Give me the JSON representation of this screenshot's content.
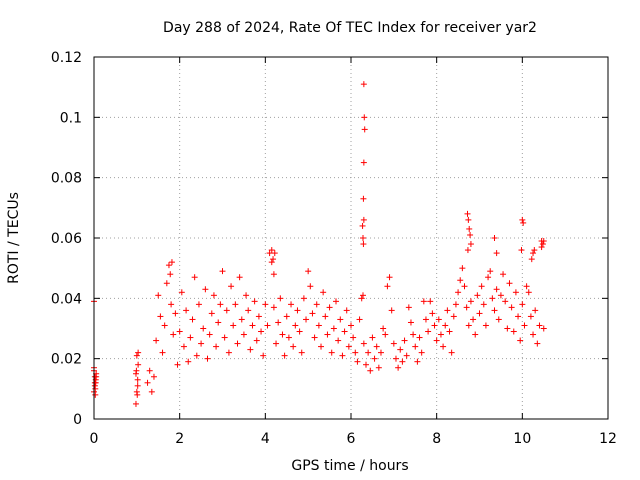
{
  "chart_data": {
    "type": "scatter",
    "title": "Day 288 of 2024, Rate Of TEC Index for receiver yar2",
    "xlabel": "GPS time / hours",
    "ylabel": "ROTI / TECUs",
    "xlim": [
      0,
      12
    ],
    "ylim": [
      0,
      0.12
    ],
    "xticks": [
      0,
      2,
      4,
      6,
      8,
      10,
      12
    ],
    "xtick_labels": [
      "0",
      "2",
      "4",
      "6",
      "8",
      "10",
      "12"
    ],
    "yticks": [
      0,
      0.02,
      0.04,
      0.06,
      0.08,
      0.1,
      0.12
    ],
    "ytick_labels": [
      "0",
      "0.02",
      "0.04",
      "0.06",
      "0.08",
      "0.1",
      "0.12"
    ],
    "grid": true,
    "marker": "+",
    "color": "#ff0000",
    "series": [
      {
        "name": "ROTI",
        "x": [
          0.0,
          0.02,
          0.03,
          0.05,
          0.0,
          0.02,
          0.04,
          0.05,
          0.0,
          0.03,
          0.0,
          0.04,
          0.98,
          1.0,
          1.02,
          1.03,
          1.0,
          0.98,
          1.02,
          1.01,
          1.03,
          0.99,
          1.25,
          1.3,
          1.35,
          1.4,
          1.45,
          1.5,
          1.55,
          1.6,
          1.65,
          1.7,
          1.75,
          1.8,
          1.85,
          1.9,
          1.95,
          2.0,
          2.05,
          2.1,
          2.15,
          2.2,
          2.25,
          2.3,
          2.35,
          2.4,
          2.45,
          2.5,
          2.55,
          2.6,
          2.65,
          2.7,
          2.75,
          2.8,
          2.85,
          2.9,
          2.95,
          3.0,
          3.05,
          3.1,
          3.15,
          3.2,
          3.25,
          3.3,
          3.35,
          3.4,
          3.45,
          3.5,
          3.55,
          3.6,
          3.65,
          3.7,
          3.75,
          3.8,
          3.85,
          3.9,
          3.95,
          4.0,
          4.05,
          4.1,
          4.15,
          4.2,
          4.25,
          4.3,
          4.35,
          4.4,
          4.45,
          4.5,
          4.55,
          4.6,
          4.65,
          4.7,
          4.75,
          4.8,
          4.85,
          4.9,
          4.95,
          5.0,
          5.05,
          5.1,
          5.15,
          5.2,
          5.25,
          5.3,
          5.35,
          5.4,
          5.45,
          5.5,
          5.55,
          5.6,
          5.65,
          5.7,
          5.75,
          5.8,
          5.85,
          5.9,
          5.95,
          6.0,
          6.05,
          6.1,
          6.15,
          6.2,
          6.25,
          6.3,
          6.35,
          6.4,
          6.45,
          6.5,
          6.55,
          6.6,
          6.65,
          6.7,
          6.75,
          6.8,
          6.85,
          6.9,
          6.95,
          7.0,
          7.05,
          7.1,
          7.15,
          7.2,
          7.25,
          7.3,
          7.35,
          7.4,
          7.45,
          7.5,
          7.55,
          7.6,
          7.65,
          7.7,
          7.75,
          7.8,
          7.85,
          7.9,
          7.95,
          8.0,
          8.05,
          8.1,
          8.15,
          8.2,
          8.25,
          8.3,
          8.35,
          8.4,
          8.45,
          8.5,
          8.55,
          8.6,
          8.65,
          8.7,
          8.75,
          8.8,
          8.85,
          8.9,
          8.95,
          9.0,
          9.05,
          9.1,
          9.15,
          9.2,
          9.25,
          9.3,
          9.35,
          9.4,
          9.45,
          9.5,
          9.55,
          9.6,
          9.65,
          9.7,
          9.75,
          9.8,
          9.85,
          9.9,
          9.95,
          10.0,
          10.05,
          10.1,
          10.15,
          10.2,
          10.25,
          10.3,
          10.35,
          10.4,
          10.45,
          10.5,
          6.3,
          6.31,
          6.32,
          6.3,
          6.29,
          6.3,
          6.28,
          6.29,
          6.28,
          6.27,
          8.72,
          8.74,
          8.76,
          8.78,
          8.8,
          8.73,
          10.0,
          10.02,
          9.98,
          10.45,
          10.48,
          10.5,
          4.15,
          4.18,
          4.2,
          4.22,
          1.82,
          1.78,
          9.35,
          9.4,
          10.25,
          10.22,
          10.28,
          0.02
        ],
        "y": [
          0.016,
          0.012,
          0.01,
          0.014,
          0.009,
          0.011,
          0.013,
          0.015,
          0.017,
          0.008,
          0.039,
          0.012,
          0.005,
          0.009,
          0.013,
          0.018,
          0.021,
          0.015,
          0.011,
          0.008,
          0.022,
          0.016,
          0.012,
          0.016,
          0.009,
          0.014,
          0.026,
          0.041,
          0.034,
          0.022,
          0.031,
          0.045,
          0.051,
          0.038,
          0.028,
          0.035,
          0.018,
          0.029,
          0.042,
          0.024,
          0.036,
          0.019,
          0.027,
          0.033,
          0.047,
          0.021,
          0.038,
          0.025,
          0.03,
          0.043,
          0.02,
          0.028,
          0.035,
          0.041,
          0.024,
          0.032,
          0.038,
          0.049,
          0.027,
          0.036,
          0.022,
          0.044,
          0.031,
          0.038,
          0.025,
          0.047,
          0.033,
          0.028,
          0.041,
          0.036,
          0.023,
          0.031,
          0.039,
          0.026,
          0.034,
          0.029,
          0.021,
          0.038,
          0.031,
          0.055,
          0.052,
          0.037,
          0.025,
          0.032,
          0.04,
          0.028,
          0.021,
          0.034,
          0.027,
          0.038,
          0.024,
          0.031,
          0.036,
          0.029,
          0.022,
          0.04,
          0.033,
          0.049,
          0.044,
          0.035,
          0.027,
          0.038,
          0.031,
          0.024,
          0.042,
          0.034,
          0.028,
          0.037,
          0.022,
          0.03,
          0.039,
          0.026,
          0.033,
          0.021,
          0.029,
          0.036,
          0.024,
          0.031,
          0.027,
          0.022,
          0.019,
          0.033,
          0.04,
          0.025,
          0.018,
          0.022,
          0.016,
          0.027,
          0.02,
          0.024,
          0.017,
          0.022,
          0.03,
          0.028,
          0.044,
          0.047,
          0.036,
          0.025,
          0.02,
          0.017,
          0.023,
          0.019,
          0.026,
          0.021,
          0.037,
          0.032,
          0.028,
          0.024,
          0.019,
          0.027,
          0.022,
          0.039,
          0.033,
          0.029,
          0.039,
          0.035,
          0.031,
          0.026,
          0.033,
          0.028,
          0.024,
          0.031,
          0.036,
          0.029,
          0.022,
          0.034,
          0.038,
          0.042,
          0.046,
          0.05,
          0.044,
          0.037,
          0.031,
          0.039,
          0.033,
          0.028,
          0.041,
          0.035,
          0.044,
          0.038,
          0.031,
          0.047,
          0.049,
          0.04,
          0.036,
          0.043,
          0.033,
          0.041,
          0.048,
          0.039,
          0.03,
          0.045,
          0.037,
          0.029,
          0.042,
          0.034,
          0.026,
          0.038,
          0.031,
          0.044,
          0.042,
          0.034,
          0.028,
          0.036,
          0.025,
          0.031,
          0.059,
          0.03,
          0.111,
          0.1,
          0.096,
          0.085,
          0.073,
          0.066,
          0.06,
          0.058,
          0.041,
          0.064,
          0.068,
          0.066,
          0.063,
          0.061,
          0.058,
          0.056,
          0.066,
          0.065,
          0.056,
          0.057,
          0.058,
          0.059,
          0.056,
          0.053,
          0.048,
          0.055,
          0.052,
          0.048,
          0.06,
          0.055,
          0.055,
          0.053,
          0.056,
          0.014
        ]
      }
    ]
  }
}
